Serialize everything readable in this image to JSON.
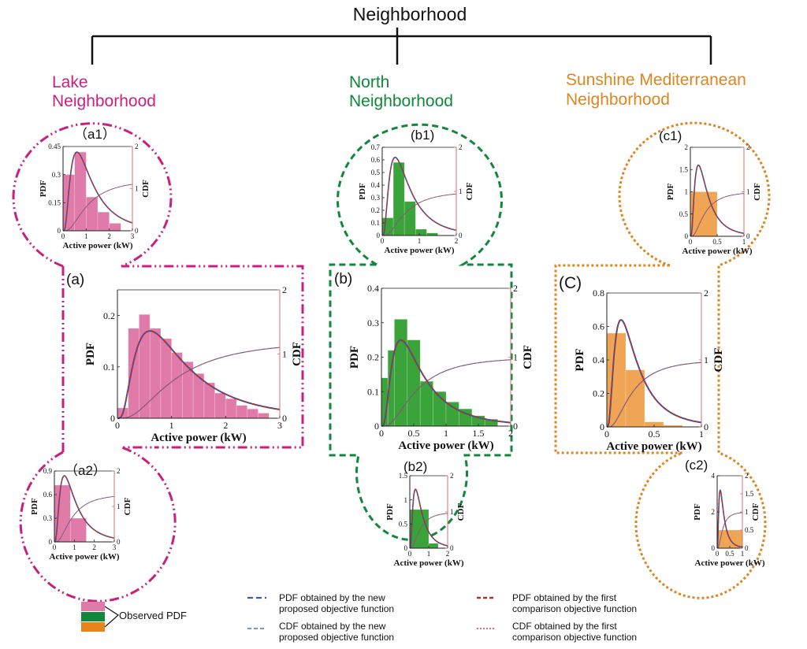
{
  "root_title": "Neighborhood",
  "colors": {
    "lake": "#c8207f",
    "lake_fill": "#e07aa9",
    "north": "#10873b",
    "north_fill": "#3aa33a",
    "sunshine": "#dd8520",
    "sunshine_fill": "#f0a555",
    "legend_orange": "#e8841c",
    "pdf_new": "#3a57a8",
    "pdf_comp": "#b0302a",
    "cdf_new": "#4a6fb0",
    "cdf_comp": "#c04040",
    "axis": "#222222",
    "right_axis": "#d07070"
  },
  "groups": [
    {
      "key": "lake",
      "name_line1": "Lake",
      "name_line2": "Neighborhood"
    },
    {
      "key": "north",
      "name_line1": "North",
      "name_line2": "Neighborhood"
    },
    {
      "key": "sunshine",
      "name_line1": "Sunshine Mediterranean",
      "name_line2": "Neighborhood"
    }
  ],
  "legend": {
    "observed_label": "Observed PDF",
    "items": [
      {
        "style": "pdf_new",
        "line1": "PDF obtained by the new",
        "line2": "proposed objective function"
      },
      {
        "style": "cdf_new",
        "line1": "CDF obtained by the new",
        "line2": "proposed objective function"
      },
      {
        "style": "pdf_comp",
        "line1": "PDF obtained by the first",
        "line2": "comparison objective function"
      },
      {
        "style": "cdf_comp",
        "line1": "CDF obtained by the first",
        "line2": "comparison objective function"
      }
    ]
  },
  "chart_data": [
    {
      "id": "a",
      "panel_label": "(a)",
      "group": "lake",
      "type": "bar",
      "xlabel": "Active power (kW)",
      "ylabel": "PDF",
      "y2label": "CDF",
      "xlim": [
        0,
        3
      ],
      "xticks": [
        0,
        1,
        2,
        3
      ],
      "ylim": [
        0,
        0.25
      ],
      "yticks": [
        0,
        0.1,
        0.2
      ],
      "y2lim": [
        0,
        2
      ],
      "y2ticks": [
        0,
        1,
        2
      ],
      "bin_edges": [
        0,
        0.2,
        0.4,
        0.6,
        0.8,
        1.0,
        1.2,
        1.4,
        1.6,
        1.8,
        2.0,
        2.2,
        2.4,
        2.6,
        2.8
      ],
      "observed_pdf": [
        0.02,
        0.175,
        0.202,
        0.175,
        0.155,
        0.128,
        0.11,
        0.087,
        0.069,
        0.049,
        0.038,
        0.025,
        0.018,
        0.01
      ],
      "pdf_peak_x": 0.6,
      "pdf_peak_y": 0.17,
      "cdf_final": 1.2
    },
    {
      "id": "a1",
      "panel_label": "（a1）",
      "group": "lake",
      "type": "bar",
      "xlabel": "Active power (kW)",
      "ylabel": "PDF",
      "y2label": "CDF",
      "xlim": [
        0,
        3
      ],
      "xticks": [
        0,
        1,
        2,
        3
      ],
      "ylim": [
        0,
        0.45
      ],
      "yticks": [
        0,
        0.15,
        0.3,
        0.45
      ],
      "y2lim": [
        0,
        2
      ],
      "y2ticks": [
        0,
        1,
        2
      ],
      "bin_edges": [
        0,
        0.5,
        1.0,
        1.5,
        2.0,
        2.5
      ],
      "observed_pdf": [
        0.3,
        0.42,
        0.18,
        0.1,
        0.04
      ],
      "pdf_peak_x": 0.6,
      "pdf_peak_y": 0.42,
      "cdf_final": 1.2
    },
    {
      "id": "a2",
      "panel_label": "（a2）",
      "group": "lake",
      "type": "bar",
      "xlabel": "Active power (kW)",
      "ylabel": "PDF",
      "y2label": "CDF",
      "xlim": [
        0,
        3
      ],
      "xticks": [
        0,
        1,
        2,
        3
      ],
      "ylim": [
        0,
        0.9
      ],
      "yticks": [
        0,
        0.3,
        0.6,
        0.9
      ],
      "y2lim": [
        0,
        2
      ],
      "y2ticks": [
        0,
        1,
        2
      ],
      "bin_edges": [
        0,
        0.8,
        1.6
      ],
      "observed_pdf": [
        0.72,
        0.3
      ],
      "pdf_peak_x": 0.5,
      "pdf_peak_y": 0.84,
      "cdf_final": 1.35
    },
    {
      "id": "b",
      "panel_label": "(b)",
      "group": "north",
      "type": "bar",
      "xlabel": "Active power (kW)",
      "ylabel": "PDF",
      "y2label": "CDF",
      "xlim": [
        0,
        2
      ],
      "xticks": [
        0,
        0.5,
        1,
        1.5,
        2
      ],
      "ylim": [
        0,
        0.4
      ],
      "yticks": [
        0,
        0.1,
        0.2,
        0.3,
        0.4
      ],
      "y2lim": [
        0,
        2
      ],
      "y2ticks": [
        0,
        1,
        2
      ],
      "bin_edges": [
        0,
        0.1,
        0.2,
        0.4,
        0.6,
        0.8,
        1.0,
        1.2,
        1.4,
        1.6,
        1.8
      ],
      "observed_pdf": [
        0.14,
        0.22,
        0.31,
        0.25,
        0.13,
        0.1,
        0.07,
        0.05,
        0.03,
        0.02
      ],
      "pdf_peak_x": 0.3,
      "pdf_peak_y": 0.25,
      "cdf_final": 1.0
    },
    {
      "id": "b1",
      "panel_label": "(b1)",
      "group": "north",
      "type": "bar",
      "xlabel": "Active power (kW)",
      "ylabel": "PDF",
      "y2label": "CDF",
      "xlim": [
        0,
        2
      ],
      "xticks": [
        0,
        1,
        2
      ],
      "ylim": [
        0,
        0.7
      ],
      "yticks": [
        0,
        0.1,
        0.2,
        0.3,
        0.4,
        0.5,
        0.6,
        0.7
      ],
      "y2lim": [
        0,
        2
      ],
      "y2ticks": [
        0,
        1,
        2
      ],
      "bin_edges": [
        0,
        0.3,
        0.6,
        0.9,
        1.2,
        1.5
      ],
      "observed_pdf": [
        0.14,
        0.58,
        0.27,
        0.05,
        0.02
      ],
      "pdf_peak_x": 0.35,
      "pdf_peak_y": 0.62,
      "cdf_final": 1.0
    },
    {
      "id": "b2",
      "panel_label": "(b2)",
      "group": "north",
      "type": "bar",
      "xlabel": "Active power (kW)",
      "ylabel": "PDF",
      "y2label": "CDF",
      "xlim": [
        0,
        2
      ],
      "xticks": [
        0,
        1,
        2
      ],
      "ylim": [
        0,
        1.5
      ],
      "yticks": [
        0,
        0.5,
        1,
        1.5
      ],
      "y2lim": [
        0,
        2
      ],
      "y2ticks": [
        0,
        1,
        2
      ],
      "bin_edges": [
        0,
        1.0,
        1.5
      ],
      "observed_pdf": [
        0.8,
        0.1
      ],
      "pdf_peak_x": 0.3,
      "pdf_peak_y": 1.22,
      "cdf_final": 1.0
    },
    {
      "id": "c",
      "panel_label": "(C)",
      "group": "sunshine",
      "type": "bar",
      "xlabel": "Active power (kW)",
      "ylabel": "PDF",
      "y2label": "CDF",
      "xlim": [
        0,
        1
      ],
      "xticks": [
        0,
        0.5,
        1
      ],
      "ylim": [
        0,
        0.8
      ],
      "yticks": [
        0,
        0.2,
        0.4,
        0.6,
        0.8
      ],
      "y2lim": [
        0,
        2
      ],
      "y2ticks": [
        0,
        1,
        2
      ],
      "bin_edges": [
        0,
        0.2,
        0.4,
        0.6,
        0.8
      ],
      "observed_pdf": [
        0.56,
        0.34,
        0.03,
        0.01
      ],
      "pdf_peak_x": 0.15,
      "pdf_peak_y": 0.64,
      "cdf_final": 1.0
    },
    {
      "id": "c1",
      "panel_label": "(c1)",
      "group": "sunshine",
      "type": "bar",
      "xlabel": "Active power (kW)",
      "ylabel": "PDF",
      "y2label": "CDF",
      "xlim": [
        0,
        1
      ],
      "xticks": [
        0,
        0.5,
        1
      ],
      "ylim": [
        0,
        2
      ],
      "yticks": [
        0,
        0.5,
        1,
        1.5,
        2
      ],
      "y2lim": [
        0,
        2
      ],
      "y2ticks": [
        0,
        1,
        2
      ],
      "bin_edges": [
        0,
        0.5
      ],
      "observed_pdf": [
        1.0
      ],
      "pdf_peak_x": 0.15,
      "pdf_peak_y": 1.6,
      "cdf_final": 1.0
    },
    {
      "id": "c2",
      "panel_label": "(c2)",
      "group": "sunshine",
      "type": "bar",
      "xlabel": "Active power (kW)",
      "ylabel": "PDF",
      "y2label": "CDF",
      "xlim": [
        0,
        1
      ],
      "xticks": [
        0,
        0.5,
        1
      ],
      "ylim": [
        0,
        4
      ],
      "yticks": [
        0,
        2,
        4
      ],
      "y2lim": [
        0,
        2
      ],
      "y2ticks": [
        0,
        0.5,
        1,
        1.5,
        2
      ],
      "bin_edges": [
        0,
        1.0
      ],
      "observed_pdf": [
        1.0
      ],
      "pdf_peak_x": 0.12,
      "pdf_peak_y": 3.2,
      "cdf_final": 1.0
    }
  ]
}
